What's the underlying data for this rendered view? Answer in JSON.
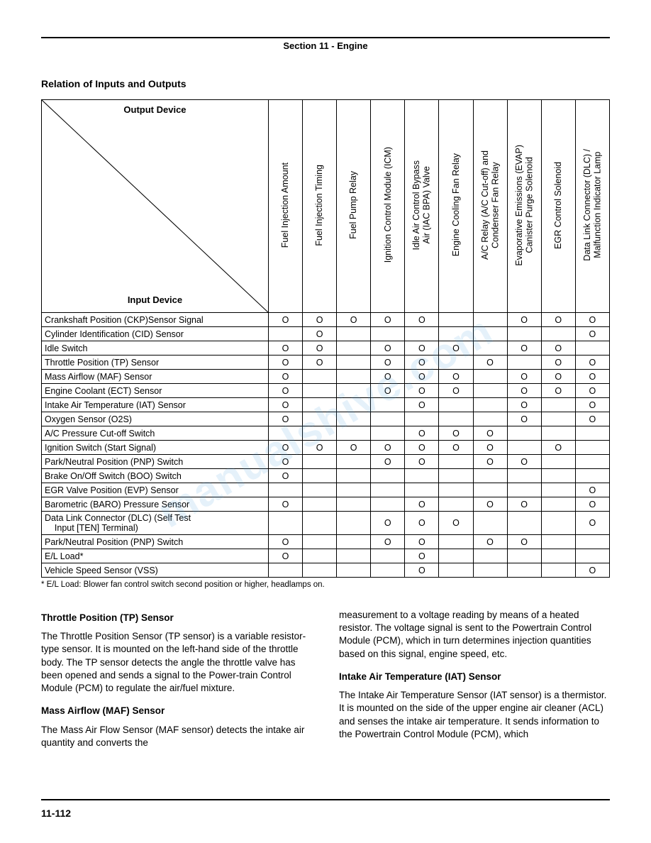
{
  "section_header": "Section 11 - Engine",
  "page_title": "Relation of Inputs and Outputs",
  "diag_labels": {
    "output": "Output Device",
    "input": "Input Device"
  },
  "columns": [
    "Fuel Injection Amount",
    "Fuel Injection Timing",
    "Fuel Pump Relay",
    "Ignition Control Module (ICM)",
    "Idle Air Control Bypass\nAir (IAC BPA) Valve",
    "Engine Cooling Fan Relay",
    "A/C Relay (A/C Cut-off) and\nCondenser Fan Relay",
    "Evaporative Emissions (EVAP)\nCanister Purge Solenoid",
    "EGR Control Solenoid",
    "Data Link Connector (DLC) /\nMalfunction Indicator Lamp"
  ],
  "rows": [
    {
      "label": "Crankshaft Position (CKP)Sensor Signal",
      "cells": [
        "O",
        "O",
        "O",
        "O",
        "O",
        "",
        "",
        "O",
        "O",
        "O"
      ]
    },
    {
      "label": "Cylinder Identification (CID) Sensor",
      "cells": [
        "",
        "O",
        "",
        "",
        "",
        "",
        "",
        "",
        "",
        "O"
      ]
    },
    {
      "label": "Idle Switch",
      "cells": [
        "O",
        "O",
        "",
        "O",
        "O",
        "O",
        "",
        "O",
        "O",
        ""
      ]
    },
    {
      "label": "Throttle Position (TP) Sensor",
      "cells": [
        "O",
        "O",
        "",
        "O",
        "O",
        "",
        "O",
        "",
        "O",
        "O"
      ]
    },
    {
      "label": "Mass Airflow (MAF) Sensor",
      "cells": [
        "O",
        "",
        "",
        "O",
        "O",
        "O",
        "",
        "O",
        "O",
        "O"
      ]
    },
    {
      "label": "Engine Coolant (ECT) Sensor",
      "cells": [
        "O",
        "",
        "",
        "O",
        "O",
        "O",
        "",
        "O",
        "O",
        "O"
      ]
    },
    {
      "label": "Intake Air Temperature (IAT) Sensor",
      "cells": [
        "O",
        "",
        "",
        "",
        "O",
        "",
        "",
        "O",
        "",
        "O"
      ]
    },
    {
      "label": "Oxygen Sensor (O2S)",
      "cells": [
        "O",
        "",
        "",
        "",
        "",
        "",
        "",
        "O",
        "",
        "O"
      ]
    },
    {
      "label": "A/C Pressure Cut-off Switch",
      "cells": [
        "",
        "",
        "",
        "",
        "O",
        "O",
        "O",
        "",
        "",
        ""
      ]
    },
    {
      "label": "Ignition Switch (Start Signal)",
      "cells": [
        "O",
        "O",
        "O",
        "O",
        "O",
        "O",
        "O",
        "",
        "O",
        ""
      ]
    },
    {
      "label": "Park/Neutral Position (PNP) Switch",
      "cells": [
        "O",
        "",
        "",
        "O",
        "O",
        "",
        "O",
        "O",
        "",
        ""
      ]
    },
    {
      "label": "Brake On/Off Switch (BOO) Switch",
      "cells": [
        "O",
        "",
        "",
        "",
        "",
        "",
        "",
        "",
        "",
        ""
      ]
    },
    {
      "label": "EGR Valve Position (EVP) Sensor",
      "cells": [
        "",
        "",
        "",
        "",
        "",
        "",
        "",
        "",
        "",
        "O"
      ]
    },
    {
      "label": "Barometric (BARO) Pressure Sensor",
      "cells": [
        "O",
        "",
        "",
        "",
        "O",
        "",
        "O",
        "O",
        "",
        "O"
      ]
    },
    {
      "label": "Data Link Connector (DLC) (Self Test\n    Input [TEN] Terminal)",
      "cells": [
        "",
        "",
        "",
        "O",
        "O",
        "O",
        "",
        "",
        "",
        "O"
      ]
    },
    {
      "label": "Park/Neutral Position (PNP) Switch",
      "cells": [
        "O",
        "",
        "",
        "O",
        "O",
        "",
        "O",
        "O",
        "",
        ""
      ]
    },
    {
      "label": "E/L Load*",
      "cells": [
        "O",
        "",
        "",
        "",
        "O",
        "",
        "",
        "",
        "",
        ""
      ]
    },
    {
      "label": "Vehicle Speed Sensor (VSS)",
      "cells": [
        "",
        "",
        "",
        "",
        "O",
        "",
        "",
        "",
        "",
        "O"
      ]
    }
  ],
  "footnote": "* E/L Load: Blower fan control switch second position or higher, headlamps on.",
  "body": {
    "left": [
      {
        "head": "Throttle Position (TP) Sensor",
        "text": "The Throttle Position Sensor (TP sensor) is a variable resistor-type sensor. It is mounted on the left-hand side of the throttle body. The TP sensor detects the angle the throttle valve has been opened and sends a signal to the Power-train Control Module (PCM) to regulate the air/fuel mixture."
      },
      {
        "head": "Mass Airflow (MAF) Sensor",
        "text": "The Mass Air Flow Sensor (MAF sensor) detects the intake air quantity and converts the"
      }
    ],
    "right": [
      {
        "head": "",
        "text": "measurement to a voltage reading by means of a heated resistor. The voltage signal is sent to the Powertrain Control Module (PCM), which in turn determines injection quantities based on this signal, engine speed, etc."
      },
      {
        "head": "Intake Air Temperature (IAT) Sensor",
        "text": "The Intake Air Temperature Sensor (IAT sensor) is a thermistor. It is mounted on the side of the upper engine air cleaner (ACL) and senses the intake air temperature. It sends information to the Powertrain Control Module (PCM), which"
      }
    ]
  },
  "page_number": "11-112",
  "watermark": "manualshive.com",
  "style": {
    "cell_mark": "O",
    "border_color": "#000000",
    "background": "#ffffff",
    "font_family": "Arial, Helvetica, sans-serif"
  }
}
